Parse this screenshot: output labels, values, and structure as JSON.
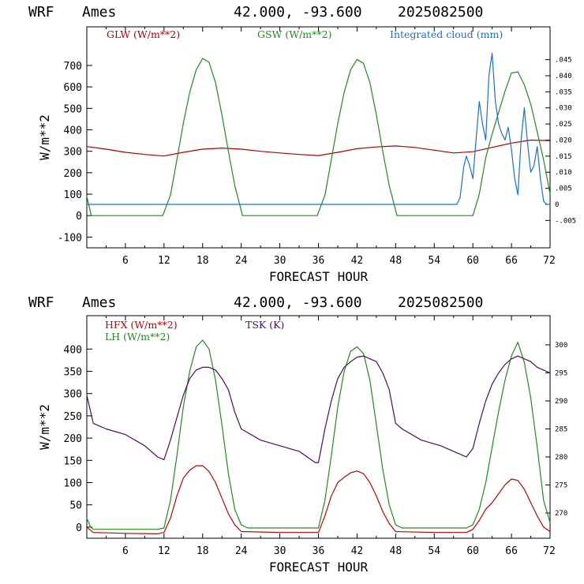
{
  "chart_data": [
    {
      "type": "line",
      "header": {
        "model": "WRF",
        "site": "Ames",
        "coords": "42.000, -93.600",
        "init": "2025082500"
      },
      "xlabel": "FORECAST HOUR",
      "ylabel": "W/m**2",
      "xlim": [
        0,
        72
      ],
      "ylim": [
        -150,
        880
      ],
      "xticks": [
        "6",
        "12",
        "18",
        "24",
        "30",
        "36",
        "42",
        "48",
        "54",
        "60",
        "66",
        "72"
      ],
      "yticks": [
        "-100",
        "0",
        "100",
        "200",
        "300",
        "400",
        "500",
        "600",
        "700"
      ],
      "right_axis": {
        "ylim": [
          -0.0135,
          0.0552
        ],
        "ticks": [
          "-.005",
          "0",
          ".005",
          ".010",
          ".015",
          ".020",
          ".025",
          ".030",
          ".035",
          ".040",
          ".045"
        ]
      },
      "series": [
        {
          "name": "GLW (W/m**2)",
          "color": "#b00000",
          "axis": "left",
          "points": [
            [
              0,
              322
            ],
            [
              3,
              310
            ],
            [
              6,
              295
            ],
            [
              9,
              285
            ],
            [
              12,
              278
            ],
            [
              15,
              295
            ],
            [
              18,
              310
            ],
            [
              21,
              315
            ],
            [
              24,
              310
            ],
            [
              27,
              300
            ],
            [
              30,
              292
            ],
            [
              33,
              285
            ],
            [
              36,
              280
            ],
            [
              39,
              295
            ],
            [
              42,
              312
            ],
            [
              45,
              320
            ],
            [
              48,
              325
            ],
            [
              51,
              318
            ],
            [
              54,
              305
            ],
            [
              57,
              292
            ],
            [
              60,
              298
            ],
            [
              63,
              318
            ],
            [
              66,
              338
            ],
            [
              69,
              352
            ],
            [
              72,
              350
            ]
          ]
        },
        {
          "name": "GSW (W/m**2)",
          "color": "#1e8c1e",
          "axis": "left",
          "points": [
            [
              0,
              90
            ],
            [
              0.7,
              0
            ],
            [
              11.8,
              0
            ],
            [
              13,
              95
            ],
            [
              14,
              260
            ],
            [
              15,
              430
            ],
            [
              16,
              575
            ],
            [
              17,
              680
            ],
            [
              18,
              733
            ],
            [
              19,
              715
            ],
            [
              20,
              620
            ],
            [
              21,
              470
            ],
            [
              22,
              300
            ],
            [
              23,
              140
            ],
            [
              24.2,
              0
            ],
            [
              35.8,
              0
            ],
            [
              37,
              95
            ],
            [
              38,
              260
            ],
            [
              39,
              430
            ],
            [
              40,
              575
            ],
            [
              41,
              680
            ],
            [
              42,
              728
            ],
            [
              43,
              710
            ],
            [
              44,
              620
            ],
            [
              45,
              470
            ],
            [
              46,
              300
            ],
            [
              47,
              140
            ],
            [
              48.2,
              0
            ],
            [
              60,
              0
            ],
            [
              61,
              100
            ],
            [
              62,
              270
            ],
            [
              63,
              380
            ],
            [
              64,
              480
            ],
            [
              65,
              580
            ],
            [
              66,
              665
            ],
            [
              67,
              670
            ],
            [
              68,
              610
            ],
            [
              69,
              520
            ],
            [
              70,
              390
            ],
            [
              71,
              260
            ],
            [
              72,
              100
            ]
          ]
        },
        {
          "name": "Integrated cloud (mm)",
          "color": "#1a6fcf",
          "axis": "right",
          "points": [
            [
              0,
              0
            ],
            [
              57.5,
              0
            ],
            [
              58,
              0.002
            ],
            [
              58.6,
              0.012
            ],
            [
              59,
              0.015
            ],
            [
              59.5,
              0.012
            ],
            [
              60,
              0.008
            ],
            [
              60.5,
              0.02
            ],
            [
              61,
              0.032
            ],
            [
              61.5,
              0.025
            ],
            [
              62,
              0.02
            ],
            [
              62.5,
              0.04
            ],
            [
              63,
              0.047
            ],
            [
              63.5,
              0.032
            ],
            [
              64,
              0.025
            ],
            [
              64.5,
              0.022
            ],
            [
              65,
              0.02
            ],
            [
              65.5,
              0.024
            ],
            [
              66,
              0.017
            ],
            [
              66.5,
              0.008
            ],
            [
              67,
              0.003
            ],
            [
              67.5,
              0.02
            ],
            [
              68,
              0.03
            ],
            [
              68.5,
              0.019
            ],
            [
              69,
              0.01
            ],
            [
              69.5,
              0.012
            ],
            [
              70,
              0.018
            ],
            [
              70.5,
              0.008
            ],
            [
              71,
              0.001
            ],
            [
              71.5,
              0
            ],
            [
              72,
              0
            ]
          ]
        }
      ]
    },
    {
      "type": "line",
      "header": {
        "model": "WRF",
        "site": "Ames",
        "coords": "42.000, -93.600",
        "init": "2025082500"
      },
      "xlabel": "FORECAST HOUR",
      "ylabel": "W/m**2",
      "xlim": [
        0,
        72
      ],
      "ylim": [
        -25,
        475
      ],
      "xticks": [
        "6",
        "12",
        "18",
        "24",
        "30",
        "36",
        "42",
        "48",
        "54",
        "60",
        "66",
        "72"
      ],
      "yticks": [
        "0",
        "50",
        "100",
        "150",
        "200",
        "250",
        "300",
        "350",
        "400"
      ],
      "right_axis": {
        "ylim": [
          265.5,
          305.2
        ],
        "ticks": [
          "270",
          "275",
          "280",
          "285",
          "290",
          "295",
          "300"
        ]
      },
      "series": [
        {
          "name": "HFX (W/m**2)",
          "color": "#c00000",
          "axis": "left",
          "points": [
            [
              0,
              0
            ],
            [
              1,
              -12
            ],
            [
              6,
              -14
            ],
            [
              11,
              -15
            ],
            [
              12,
              -12
            ],
            [
              13,
              20
            ],
            [
              14,
              70
            ],
            [
              15,
              110
            ],
            [
              16,
              128
            ],
            [
              17,
              138
            ],
            [
              18,
              138
            ],
            [
              19,
              125
            ],
            [
              20,
              100
            ],
            [
              21,
              65
            ],
            [
              22,
              30
            ],
            [
              23,
              5
            ],
            [
              24,
              -10
            ],
            [
              30,
              -12
            ],
            [
              36,
              -12
            ],
            [
              37,
              25
            ],
            [
              38,
              70
            ],
            [
              39,
              100
            ],
            [
              40,
              112
            ],
            [
              41,
              122
            ],
            [
              42,
              126
            ],
            [
              43,
              120
            ],
            [
              44,
              100
            ],
            [
              45,
              70
            ],
            [
              46,
              35
            ],
            [
              47,
              8
            ],
            [
              48,
              -10
            ],
            [
              54,
              -12
            ],
            [
              59,
              -12
            ],
            [
              60,
              -5
            ],
            [
              61,
              15
            ],
            [
              62,
              40
            ],
            [
              63,
              55
            ],
            [
              64,
              75
            ],
            [
              65,
              95
            ],
            [
              66,
              108
            ],
            [
              67,
              105
            ],
            [
              68,
              85
            ],
            [
              69,
              55
            ],
            [
              70,
              25
            ],
            [
              71,
              0
            ],
            [
              72,
              -10
            ]
          ]
        },
        {
          "name": "LH (W/m**2)",
          "color": "#1e8c1e",
          "axis": "left",
          "points": [
            [
              0,
              20
            ],
            [
              0.6,
              0
            ],
            [
              1,
              -5
            ],
            [
              11,
              -5
            ],
            [
              12,
              -2
            ],
            [
              13,
              60
            ],
            [
              14,
              160
            ],
            [
              15,
              270
            ],
            [
              16,
              350
            ],
            [
              17,
              405
            ],
            [
              18,
              420
            ],
            [
              19,
              400
            ],
            [
              20,
              330
            ],
            [
              21,
              230
            ],
            [
              22,
              120
            ],
            [
              23,
              40
            ],
            [
              24,
              5
            ],
            [
              25,
              -2
            ],
            [
              36,
              -2
            ],
            [
              37,
              60
            ],
            [
              38,
              160
            ],
            [
              39,
              270
            ],
            [
              40,
              350
            ],
            [
              41,
              395
            ],
            [
              42,
              405
            ],
            [
              43,
              390
            ],
            [
              44,
              330
            ],
            [
              45,
              230
            ],
            [
              46,
              130
            ],
            [
              47,
              50
            ],
            [
              48,
              5
            ],
            [
              49,
              -2
            ],
            [
              59,
              -2
            ],
            [
              60,
              5
            ],
            [
              61,
              40
            ],
            [
              62,
              100
            ],
            [
              63,
              180
            ],
            [
              64,
              260
            ],
            [
              65,
              330
            ],
            [
              66,
              385
            ],
            [
              67,
              415
            ],
            [
              68,
              370
            ],
            [
              69,
              290
            ],
            [
              70,
              180
            ],
            [
              71,
              60
            ],
            [
              72,
              10
            ]
          ]
        },
        {
          "name": "TSK (K)",
          "color": "#4a0e5e",
          "axis": "right",
          "points": [
            [
              0,
              291
            ],
            [
              1,
              286
            ],
            [
              3,
              285
            ],
            [
              6,
              284
            ],
            [
              9,
              282
            ],
            [
              11,
              280
            ],
            [
              12,
              279.5
            ],
            [
              13,
              283
            ],
            [
              14,
              287
            ],
            [
              15,
              291
            ],
            [
              16,
              294
            ],
            [
              17,
              295.5
            ],
            [
              18,
              296
            ],
            [
              19,
              296
            ],
            [
              20,
              295.5
            ],
            [
              21,
              294
            ],
            [
              22,
              292
            ],
            [
              23,
              288
            ],
            [
              24,
              285
            ],
            [
              27,
              283
            ],
            [
              30,
              282
            ],
            [
              33,
              281
            ],
            [
              35.5,
              279
            ],
            [
              36,
              279
            ],
            [
              37,
              285
            ],
            [
              38,
              290
            ],
            [
              39,
              294
            ],
            [
              40,
              296
            ],
            [
              41,
              297
            ],
            [
              42,
              297.8
            ],
            [
              43,
              298
            ],
            [
              44,
              297.5
            ],
            [
              45,
              297
            ],
            [
              46,
              295
            ],
            [
              47,
              292
            ],
            [
              48,
              286
            ],
            [
              49,
              285
            ],
            [
              52,
              283
            ],
            [
              55,
              282
            ],
            [
              57,
              281
            ],
            [
              59,
              280
            ],
            [
              60,
              281.5
            ],
            [
              61,
              286
            ],
            [
              62,
              290
            ],
            [
              63,
              293
            ],
            [
              64,
              295
            ],
            [
              65,
              296.5
            ],
            [
              66,
              297.5
            ],
            [
              67,
              298
            ],
            [
              68,
              297.5
            ],
            [
              69,
              297
            ],
            [
              70,
              296
            ],
            [
              71,
              295.5
            ],
            [
              72,
              295
            ]
          ]
        }
      ]
    }
  ]
}
